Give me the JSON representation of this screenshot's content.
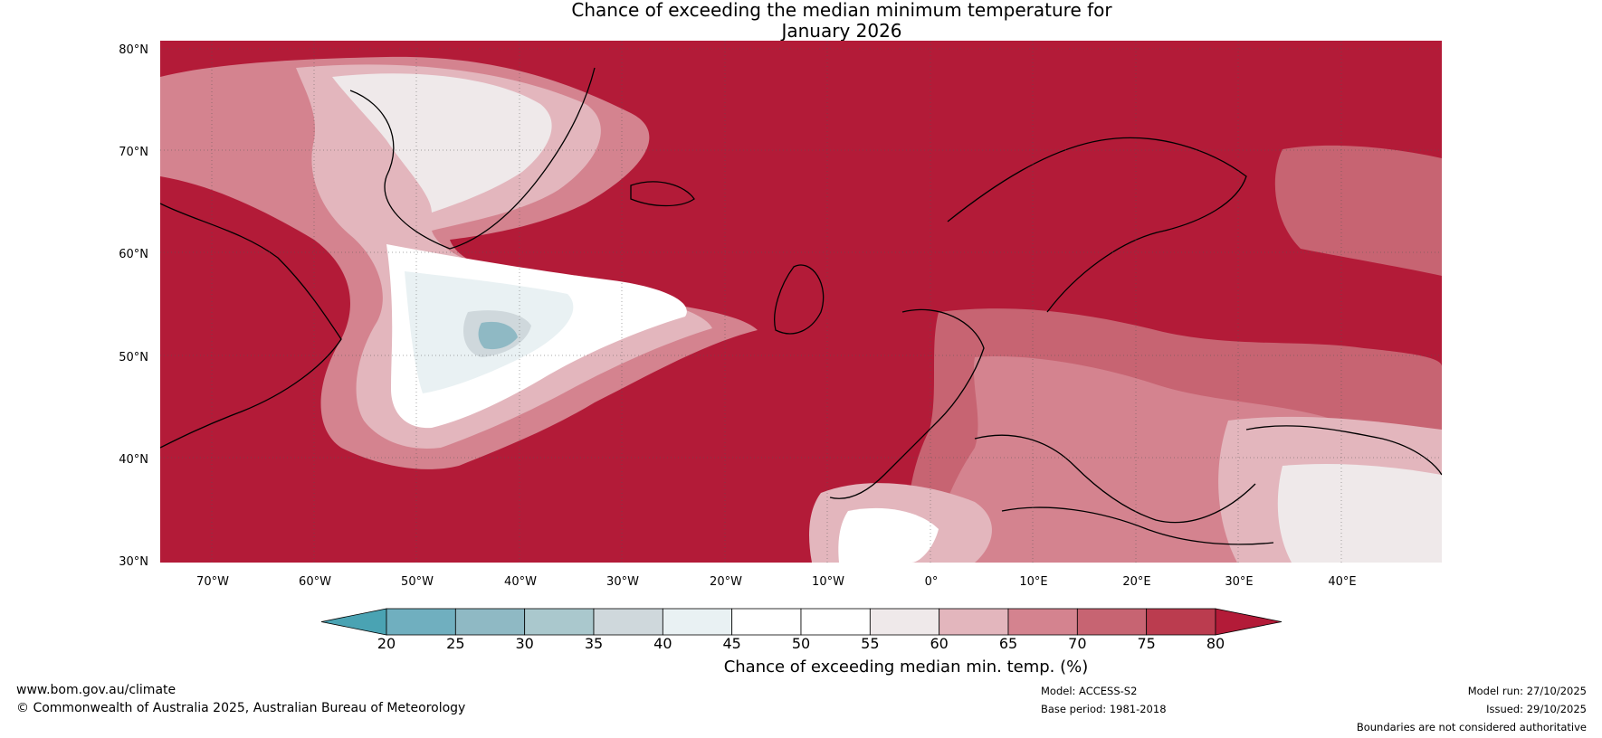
{
  "title_line1": "Chance of exceeding the median minimum temperature for",
  "title_line2": "January 2026",
  "lat_labels": [
    "80°N",
    "70°N",
    "60°N",
    "50°N",
    "40°N",
    "30°N"
  ],
  "lon_labels": [
    "70°W",
    "60°W",
    "50°W",
    "40°W",
    "30°W",
    "20°W",
    "10°W",
    "0°",
    "10°E",
    "20°E",
    "30°E",
    "40°E"
  ],
  "colorbar": {
    "ticks": [
      "20",
      "25",
      "30",
      "35",
      "40",
      "45",
      "50",
      "55",
      "60",
      "65",
      "70",
      "75",
      "80"
    ],
    "colors": [
      "#4aa3b3",
      "#70afbf",
      "#8fb9c4",
      "#aac8cd",
      "#cfd8dc",
      "#e9f1f3",
      "#ffffff",
      "#ffffff",
      "#efe9ea",
      "#e3b6bd",
      "#d4838f",
      "#c76472",
      "#bb3c4f",
      "#b31b38"
    ],
    "label": "Chance of exceeding median min. temp. (%)"
  },
  "footer": {
    "website": "www.bom.gov.au/climate",
    "copyright": "© Commonwealth of Australia 2025, Australian Bureau of Meteorology",
    "model": "Model: ACCESS-S2",
    "base_period": "Base period: 1981-2018",
    "model_run": "Model run: 27/10/2025",
    "issued": "Issued: 29/10/2025",
    "disclaimer": "Boundaries are not considered authoritative"
  }
}
